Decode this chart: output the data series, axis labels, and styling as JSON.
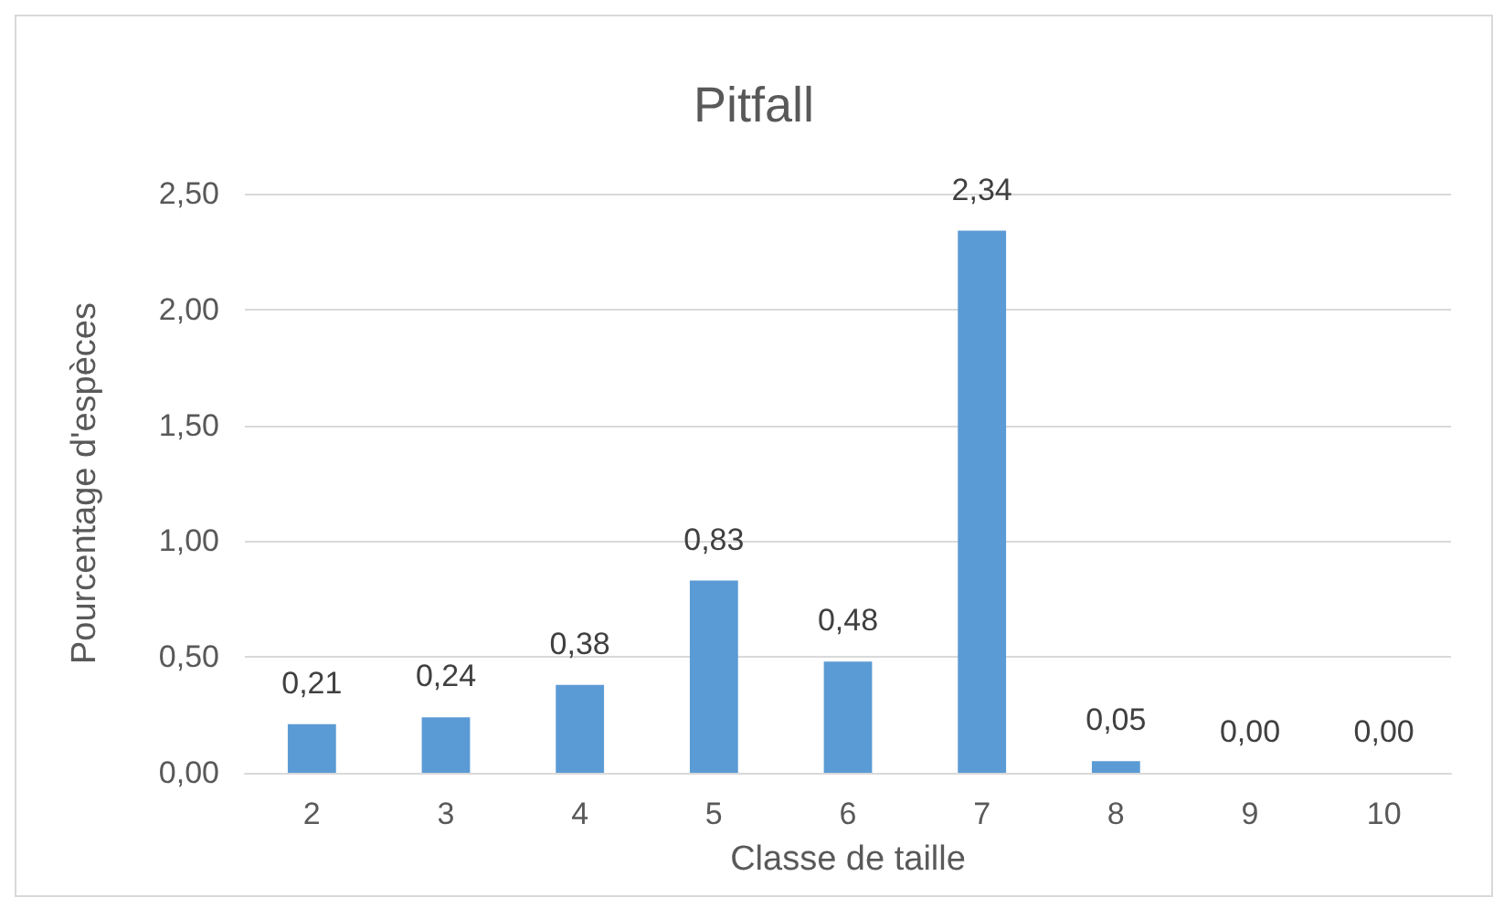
{
  "chart_data": {
    "type": "bar",
    "title": "Pitfall",
    "xlabel": "Classe de taille",
    "ylabel": "Pourcentage d'espèces",
    "categories": [
      "2",
      "3",
      "4",
      "5",
      "6",
      "7",
      "8",
      "9",
      "10"
    ],
    "values": [
      0.21,
      0.24,
      0.38,
      0.83,
      0.48,
      2.34,
      0.05,
      0,
      0
    ],
    "value_labels": [
      "0,21",
      "0,24",
      "0,38",
      "0,83",
      "0,48",
      "2,34",
      "0,05",
      "0,00",
      "0,00"
    ],
    "color": "#5b9bd5",
    "ylim": [
      0,
      2.5
    ],
    "yticks": [
      {
        "value": 0,
        "label": "0,00"
      },
      {
        "value": 0.5,
        "label": "0,50"
      },
      {
        "value": 1,
        "label": "1,00"
      },
      {
        "value": 1.5,
        "label": "1,50"
      },
      {
        "value": 2,
        "label": "2,00"
      },
      {
        "value": 2.5,
        "label": "2,50"
      }
    ],
    "grid": "y"
  }
}
